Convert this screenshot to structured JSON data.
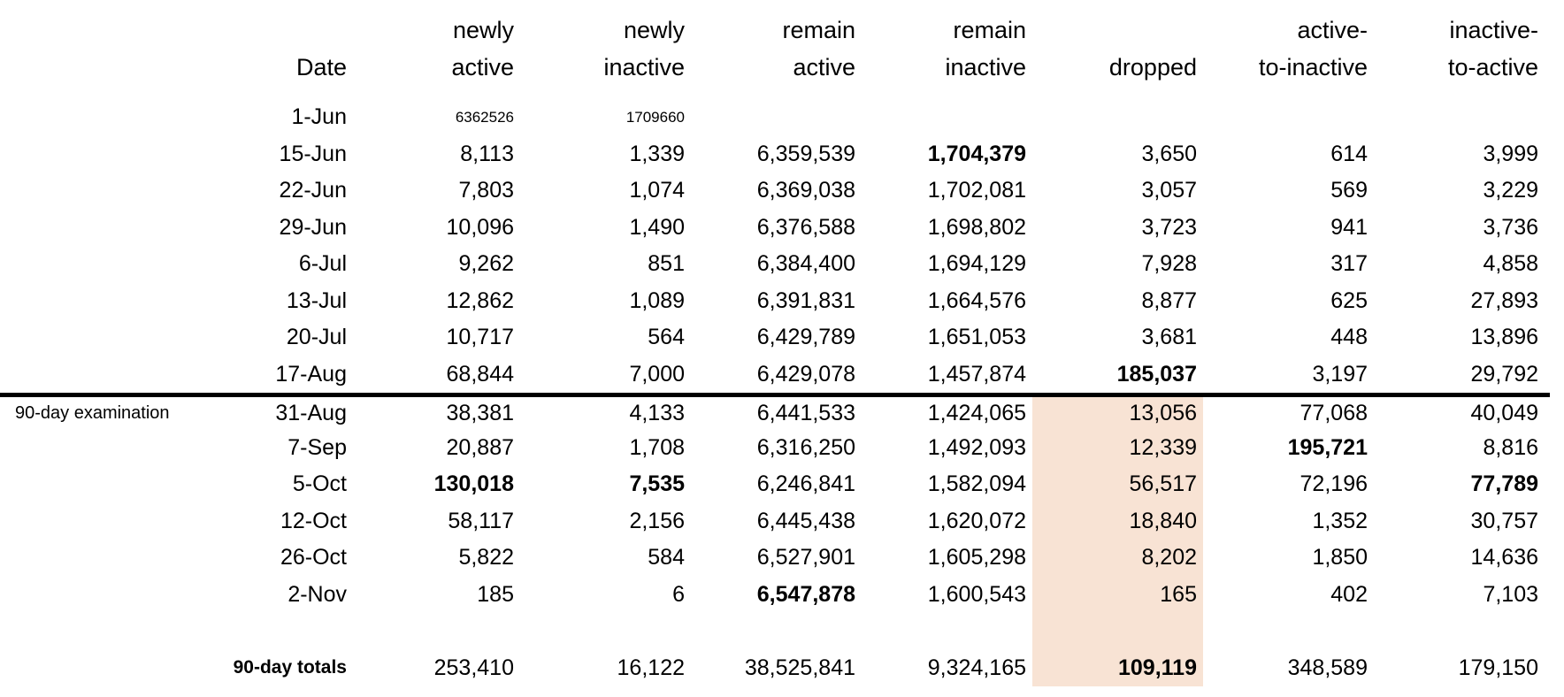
{
  "chart_data": {
    "type": "table",
    "title": "",
    "columns": [
      "Date",
      "newly active",
      "newly inactive",
      "remain active",
      "remain inactive",
      "dropped",
      "active-to-inactive",
      "inactive-to-active"
    ],
    "header_lines": [
      [
        "",
        "Date"
      ],
      [
        "newly",
        "active"
      ],
      [
        "newly",
        "inactive"
      ],
      [
        "remain",
        "active"
      ],
      [
        "remain",
        "inactive"
      ],
      [
        "",
        "dropped"
      ],
      [
        "active-",
        "to-inactive"
      ],
      [
        "inactive-",
        "to-active"
      ]
    ],
    "section_label": "90-day examination",
    "rows": [
      {
        "date": "1-Jun",
        "values": [
          "6362526",
          "1709660",
          "",
          "",
          "",
          "",
          ""
        ],
        "small": true,
        "bold": [],
        "highlighted": false
      },
      {
        "date": "15-Jun",
        "values": [
          "8,113",
          "1,339",
          "6,359,539",
          "1,704,379",
          "3,650",
          "614",
          "3,999"
        ],
        "small": false,
        "bold": [
          3
        ],
        "highlighted": false
      },
      {
        "date": "22-Jun",
        "values": [
          "7,803",
          "1,074",
          "6,369,038",
          "1,702,081",
          "3,057",
          "569",
          "3,229"
        ],
        "small": false,
        "bold": [],
        "highlighted": false
      },
      {
        "date": "29-Jun",
        "values": [
          "10,096",
          "1,490",
          "6,376,588",
          "1,698,802",
          "3,723",
          "941",
          "3,736"
        ],
        "small": false,
        "bold": [],
        "highlighted": false
      },
      {
        "date": "6-Jul",
        "values": [
          "9,262",
          "851",
          "6,384,400",
          "1,694,129",
          "7,928",
          "317",
          "4,858"
        ],
        "small": false,
        "bold": [],
        "highlighted": false
      },
      {
        "date": "13-Jul",
        "values": [
          "12,862",
          "1,089",
          "6,391,831",
          "1,664,576",
          "8,877",
          "625",
          "27,893"
        ],
        "small": false,
        "bold": [],
        "highlighted": false
      },
      {
        "date": "20-Jul",
        "values": [
          "10,717",
          "564",
          "6,429,789",
          "1,651,053",
          "3,681",
          "448",
          "13,896"
        ],
        "small": false,
        "bold": [],
        "highlighted": false
      },
      {
        "date": "17-Aug",
        "values": [
          "68,844",
          "7,000",
          "6,429,078",
          "1,457,874",
          "185,037",
          "3,197",
          "29,792"
        ],
        "small": false,
        "bold": [
          4
        ],
        "highlighted": false
      },
      {
        "date": "31-Aug",
        "values": [
          "38,381",
          "4,133",
          "6,441,533",
          "1,424,065",
          "13,056",
          "77,068",
          "40,049"
        ],
        "small": false,
        "bold": [],
        "highlighted": true,
        "divider_above": true,
        "side_label": true
      },
      {
        "date": "7-Sep",
        "values": [
          "20,887",
          "1,708",
          "6,316,250",
          "1,492,093",
          "12,339",
          "195,721",
          "8,816"
        ],
        "small": false,
        "bold": [
          5
        ],
        "highlighted": true
      },
      {
        "date": "5-Oct",
        "values": [
          "130,018",
          "7,535",
          "6,246,841",
          "1,582,094",
          "56,517",
          "72,196",
          "77,789"
        ],
        "small": false,
        "bold": [
          0,
          1,
          6
        ],
        "highlighted": true
      },
      {
        "date": "12-Oct",
        "values": [
          "58,117",
          "2,156",
          "6,445,438",
          "1,620,072",
          "18,840",
          "1,352",
          "30,757"
        ],
        "small": false,
        "bold": [],
        "highlighted": true
      },
      {
        "date": "26-Oct",
        "values": [
          "5,822",
          "584",
          "6,527,901",
          "1,605,298",
          "8,202",
          "1,850",
          "14,636"
        ],
        "small": false,
        "bold": [],
        "highlighted": true
      },
      {
        "date": "2-Nov",
        "values": [
          "185",
          "6",
          "6,547,878",
          "1,600,543",
          "165",
          "402",
          "7,103"
        ],
        "small": false,
        "bold": [
          2
        ],
        "highlighted": true
      }
    ],
    "totals": {
      "label": "90-day totals",
      "values": [
        "253,410",
        "16,122",
        "38,525,841",
        "9,324,165",
        "109,119",
        "348,589",
        "179,150"
      ],
      "bold": [
        4
      ],
      "highlighted": true
    },
    "highlight": {
      "column": "dropped",
      "column_index": 4,
      "from_row": "31-Aug",
      "color": "#F8E3D4"
    },
    "layout": {
      "divider_after_row": "17-Aug",
      "legend_position": "none",
      "grid": false
    }
  }
}
